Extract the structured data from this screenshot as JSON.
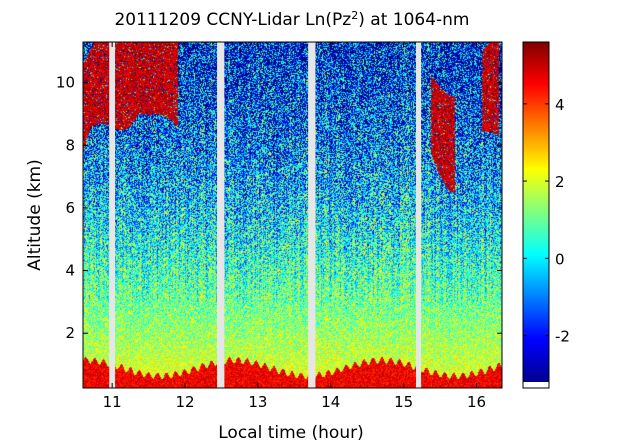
{
  "chart_data": {
    "type": "heatmap",
    "title_prefix": "20111209 CCNY-Lidar Ln(Pz",
    "title_exponent": "2",
    "title_suffix": ") at 1064-nm",
    "xlabel": "Local time (hour)",
    "ylabel": "Altitude (km)",
    "xlim": [
      10.6,
      16.35
    ],
    "ylim": [
      0.25,
      11.3
    ],
    "xticks": [
      11,
      12,
      13,
      14,
      15,
      16
    ],
    "xtick_labels": [
      "11",
      "12",
      "13",
      "14",
      "15",
      "16"
    ],
    "yticks": [
      2,
      4,
      6,
      8,
      10
    ],
    "ytick_labels": [
      "2",
      "4",
      "6",
      "8",
      "10"
    ],
    "colorbar": {
      "colormap": "jet",
      "range": [
        -3.2,
        5.6
      ],
      "ticks": [
        -2,
        0,
        2,
        4
      ],
      "tick_labels": [
        "-2",
        "0",
        "2",
        "4"
      ]
    },
    "data_gaps_hours": [
      [
        10.96,
        11.04
      ],
      [
        12.44,
        12.54
      ],
      [
        13.69,
        13.79
      ],
      [
        15.17,
        15.24
      ]
    ],
    "layers": [
      {
        "name": "boundary-layer",
        "altitude_km": [
          0.3,
          1.2
        ],
        "value": 4.5
      },
      {
        "name": "cirrus-cloud",
        "altitude_km": [
          8.6,
          11.3
        ],
        "value": 5.0
      }
    ]
  }
}
